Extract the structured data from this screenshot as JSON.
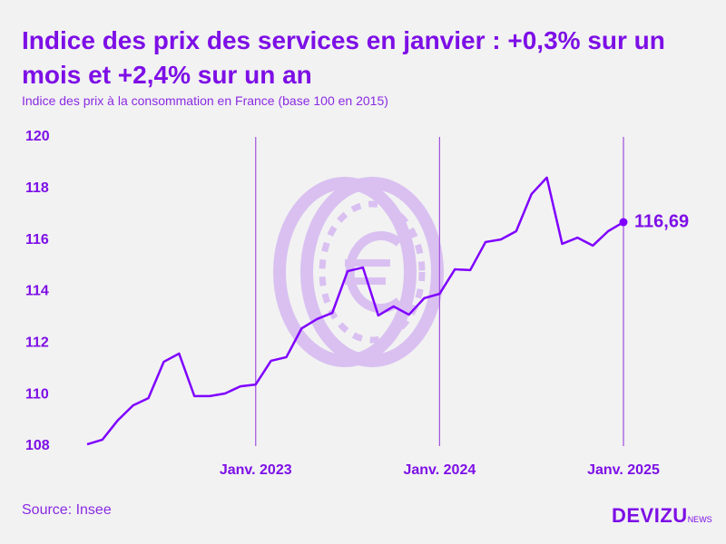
{
  "chart_data": {
    "type": "line",
    "title": "Indice des prix des services en janvier : +0,3% sur un mois et +2,4% sur un an",
    "subtitle": "Indice des prix à la consommation en France (base 100 en 2015)",
    "categories": [
      null,
      null,
      null,
      null,
      null,
      null,
      null,
      null,
      null,
      null,
      null,
      "Janv. 2023",
      null,
      null,
      null,
      null,
      null,
      null,
      null,
      null,
      null,
      null,
      null,
      "Janv. 2024",
      null,
      null,
      null,
      null,
      null,
      null,
      null,
      null,
      null,
      null,
      null,
      "Janv. 2025"
    ],
    "series": [
      {
        "name": "Indice des prix des services",
        "color": "#7f00ff",
        "values": [
          108.07,
          108.25,
          109.0,
          109.58,
          109.86,
          111.27,
          111.59,
          109.94,
          109.94,
          110.04,
          110.32,
          110.39,
          111.31,
          111.45,
          112.57,
          112.93,
          113.17,
          114.79,
          114.93,
          113.07,
          113.42,
          113.1,
          113.74,
          113.91,
          114.86,
          114.83,
          115.92,
          116.02,
          116.34,
          117.78,
          118.42,
          115.85,
          116.09,
          115.78,
          116.34,
          116.69
        ],
        "value_labels": [
          null,
          null,
          null,
          null,
          null,
          null,
          null,
          null,
          null,
          null,
          null,
          null,
          null,
          null,
          null,
          null,
          null,
          null,
          null,
          null,
          null,
          null,
          null,
          null,
          null,
          null,
          null,
          null,
          null,
          null,
          null,
          null,
          null,
          null,
          null,
          "116,69"
        ]
      }
    ],
    "ylim": [
      108,
      120
    ],
    "yticks": [
      108,
      110,
      112,
      114,
      116,
      118,
      120
    ],
    "source": "Source: Insee",
    "logo": "DEVIZU",
    "logo_suffix": "NEWS"
  }
}
